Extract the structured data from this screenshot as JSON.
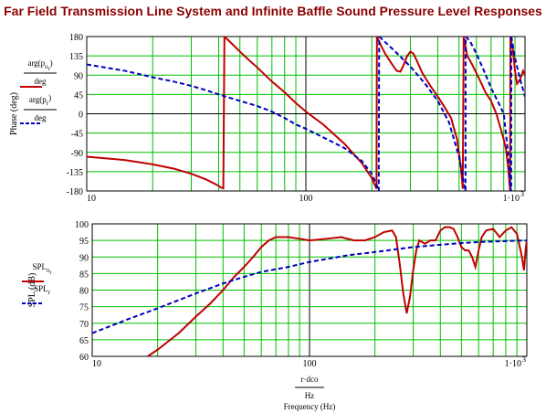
{
  "title": "Far Field Transmission Line System and Infinite Baffle Sound Pressure Level Responses",
  "colors": {
    "red": "#c00000",
    "blue": "#0000c0",
    "grid": "#00c000",
    "major_grid": "#000000"
  },
  "chart_data": [
    {
      "type": "line",
      "x_scale": "log",
      "xlim": [
        10,
        1000
      ],
      "ylim": [
        -180,
        180
      ],
      "ylabel": "Phase (deg)",
      "yticks": [
        180,
        135,
        90,
        45,
        0,
        -45,
        -90,
        -135,
        -180
      ],
      "xtick_labels": [
        "10",
        "100",
        "1·10"
      ],
      "xtick_exponent": "3",
      "grid": true,
      "legend": [
        {
          "num": "arg(p",
          "sub": "o",
          "sub2": "r",
          "close": ")",
          "den": "deg",
          "style": "solid",
          "color": "red"
        },
        {
          "num": "arg(p",
          "sub": "r",
          "close": ")",
          "den": "deg",
          "style": "dashed",
          "color": "blue"
        }
      ],
      "series": [
        {
          "style": "solid",
          "color": "red",
          "points": [
            [
              10,
              -100
            ],
            [
              15,
              -108
            ],
            [
              20,
              -118
            ],
            [
              25,
              -128
            ],
            [
              30,
              -140
            ],
            [
              35,
              -153
            ],
            [
              39,
              -165
            ],
            [
              41,
              -172
            ],
            [
              42,
              -174
            ],
            [
              42.5,
              180
            ],
            [
              45,
              168
            ],
            [
              50,
              145
            ],
            [
              55,
              125
            ],
            [
              60,
              108
            ],
            [
              70,
              75
            ],
            [
              80,
              50
            ],
            [
              90,
              25
            ],
            [
              100,
              5
            ],
            [
              120,
              -25
            ],
            [
              150,
              -70
            ],
            [
              180,
              -115
            ],
            [
              200,
              -150
            ],
            [
              210,
              -175
            ],
            [
              211,
              180
            ],
            [
              215,
              170
            ],
            [
              230,
              140
            ],
            [
              250,
              112
            ],
            [
              260,
              100
            ],
            [
              270,
              98
            ],
            [
              280,
              115
            ],
            [
              290,
              135
            ],
            [
              300,
              145
            ],
            [
              310,
              140
            ],
            [
              320,
              125
            ],
            [
              340,
              95
            ],
            [
              370,
              65
            ],
            [
              400,
              40
            ],
            [
              430,
              15
            ],
            [
              460,
              -10
            ],
            [
              490,
              -60
            ],
            [
              510,
              -125
            ],
            [
              520,
              -175
            ],
            [
              525,
              180
            ],
            [
              545,
              135
            ],
            [
              560,
              125
            ],
            [
              580,
              110
            ],
            [
              620,
              80
            ],
            [
              660,
              50
            ],
            [
              700,
              30
            ],
            [
              740,
              0
            ],
            [
              780,
              -40
            ],
            [
              800,
              -60
            ],
            [
              820,
              -85
            ],
            [
              840,
              -130
            ],
            [
              850,
              -165
            ],
            [
              855,
              -180
            ],
            [
              858,
              180
            ],
            [
              880,
              150
            ],
            [
              900,
              100
            ],
            [
              920,
              70
            ],
            [
              950,
              80
            ],
            [
              980,
              100
            ],
            [
              1000,
              90
            ]
          ]
        },
        {
          "style": "dashed",
          "color": "blue",
          "points": [
            [
              10,
              115
            ],
            [
              15,
              100
            ],
            [
              20,
              85
            ],
            [
              25,
              75
            ],
            [
              30,
              65
            ],
            [
              35,
              55
            ],
            [
              40,
              45
            ],
            [
              50,
              30
            ],
            [
              60,
              18
            ],
            [
              70,
              5
            ],
            [
              80,
              -10
            ],
            [
              90,
              -25
            ],
            [
              100,
              -35
            ],
            [
              120,
              -55
            ],
            [
              150,
              -80
            ],
            [
              180,
              -110
            ],
            [
              200,
              -140
            ],
            [
              210,
              -165
            ],
            [
              215,
              -180
            ],
            [
              216,
              180
            ],
            [
              250,
              150
            ],
            [
              300,
              110
            ],
            [
              350,
              70
            ],
            [
              400,
              30
            ],
            [
              450,
              -20
            ],
            [
              500,
              -100
            ],
            [
              530,
              -170
            ],
            [
              535,
              -180
            ],
            [
              536,
              180
            ],
            [
              560,
              170
            ],
            [
              600,
              140
            ],
            [
              650,
              100
            ],
            [
              700,
              60
            ],
            [
              750,
              30
            ],
            [
              800,
              0
            ],
            [
              840,
              -100
            ],
            [
              860,
              -175
            ],
            [
              865,
              -180
            ],
            [
              866,
              180
            ],
            [
              900,
              130
            ],
            [
              950,
              80
            ],
            [
              1000,
              40
            ]
          ]
        }
      ]
    },
    {
      "type": "line",
      "x_scale": "log",
      "xlim": [
        10,
        1000
      ],
      "ylim": [
        60,
        100
      ],
      "ylabel": "SPL (dB)",
      "xlabel_num": "r·dco",
      "xlabel_den": "Hz",
      "xlabel": "Frequency (Hz)",
      "yticks": [
        100,
        95,
        90,
        85,
        80,
        75,
        70,
        65,
        60
      ],
      "xtick_labels": [
        "10",
        "100",
        "1·10"
      ],
      "xtick_exponent": "3",
      "grid": true,
      "legend": [
        {
          "num": "SPL",
          "sub": "o",
          "sub2": "r",
          "style": "solid",
          "color": "red"
        },
        {
          "num": "SPL",
          "sub": "r",
          "style": "dashed",
          "color": "blue"
        }
      ],
      "series": [
        {
          "style": "solid",
          "color": "red",
          "points": [
            [
              18,
              60
            ],
            [
              20,
              62
            ],
            [
              25,
              67
            ],
            [
              30,
              72
            ],
            [
              35,
              76
            ],
            [
              40,
              80
            ],
            [
              45,
              84
            ],
            [
              50,
              87
            ],
            [
              55,
              90
            ],
            [
              60,
              93
            ],
            [
              65,
              95
            ],
            [
              70,
              96
            ],
            [
              80,
              96
            ],
            [
              90,
              95.5
            ],
            [
              100,
              95
            ],
            [
              120,
              95.5
            ],
            [
              140,
              96
            ],
            [
              160,
              95
            ],
            [
              180,
              95
            ],
            [
              200,
              96
            ],
            [
              220,
              97.5
            ],
            [
              240,
              98
            ],
            [
              250,
              96
            ],
            [
              260,
              88
            ],
            [
              270,
              79
            ],
            [
              280,
              73
            ],
            [
              290,
              78
            ],
            [
              300,
              86
            ],
            [
              310,
              92
            ],
            [
              320,
              95
            ],
            [
              340,
              94
            ],
            [
              360,
              95
            ],
            [
              380,
              95
            ],
            [
              400,
              98
            ],
            [
              420,
              99
            ],
            [
              440,
              99
            ],
            [
              460,
              98.5
            ],
            [
              480,
              96
            ],
            [
              500,
              93
            ],
            [
              520,
              92
            ],
            [
              540,
              92
            ],
            [
              560,
              90
            ],
            [
              580,
              87
            ],
            [
              600,
              92
            ],
            [
              620,
              96
            ],
            [
              650,
              98
            ],
            [
              700,
              98.5
            ],
            [
              750,
              96
            ],
            [
              800,
              98
            ],
            [
              850,
              99
            ],
            [
              900,
              97
            ],
            [
              950,
              90
            ],
            [
              970,
              86
            ],
            [
              990,
              93
            ],
            [
              1000,
              95
            ]
          ]
        },
        {
          "style": "dashed",
          "color": "blue",
          "points": [
            [
              10,
              67
            ],
            [
              15,
              71.5
            ],
            [
              20,
              74.5
            ],
            [
              30,
              79
            ],
            [
              40,
              82
            ],
            [
              50,
              84
            ],
            [
              60,
              85.5
            ],
            [
              80,
              87
            ],
            [
              100,
              88.5
            ],
            [
              150,
              90.5
            ],
            [
              200,
              91.5
            ],
            [
              300,
              93
            ],
            [
              400,
              93.7
            ],
            [
              500,
              94.2
            ],
            [
              600,
              94.5
            ],
            [
              800,
              94.8
            ],
            [
              1000,
              95
            ]
          ]
        }
      ]
    }
  ]
}
